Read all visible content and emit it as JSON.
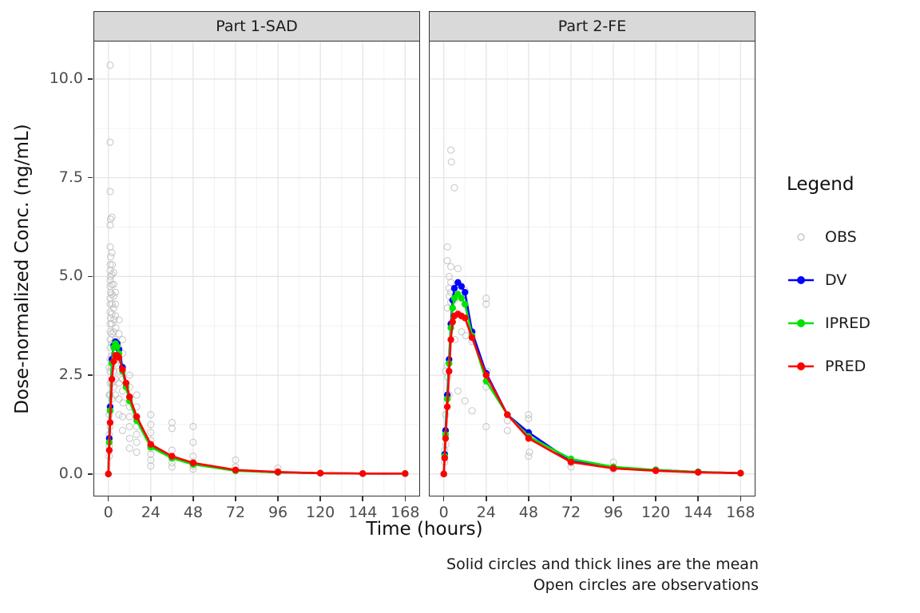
{
  "chart": {
    "caption_line1": "Solid circles and thick lines are the mean",
    "caption_line2": "Open circles are observations",
    "legend": {
      "title": "Legend",
      "entries": [
        {
          "label": "OBS",
          "type": "point-open",
          "color": "#bdbdbd"
        },
        {
          "label": "DV",
          "type": "line-point",
          "color": "#0000ff"
        },
        {
          "label": "IPRED",
          "type": "line-point",
          "color": "#00e300"
        },
        {
          "label": "PRED",
          "type": "line-point",
          "color": "#ff0000"
        }
      ]
    }
  },
  "chart_data": {
    "type": "line+scatter, faceted",
    "xlabel": "Time (hours)",
    "ylabel": "Dose-normalized Conc. (ng/mL)",
    "xlim": [
      -8,
      176
    ],
    "ylim": [
      -0.55,
      10.95
    ],
    "x_ticks": [
      0,
      24,
      48,
      72,
      96,
      120,
      144,
      168
    ],
    "x_tick_labels": [
      "0",
      "24",
      "48",
      "72",
      "96",
      "120",
      "144",
      "168"
    ],
    "x_minor": [
      12,
      36,
      60,
      84,
      108,
      132,
      156
    ],
    "y_ticks": [
      0,
      2.5,
      5,
      7.5,
      10
    ],
    "y_tick_labels": [
      "0.0",
      "2.5",
      "5.0",
      "7.5",
      "10.0"
    ],
    "y_minor": [
      1.25,
      3.75,
      6.25,
      8.75
    ],
    "grid": "on",
    "legend_position": "right",
    "series_x": [
      0,
      0.5,
      1,
      2,
      3,
      4,
      5,
      6,
      8,
      10,
      12,
      16,
      24,
      36,
      48,
      72,
      96,
      120,
      144,
      168
    ],
    "series_colors": {
      "DV": "#0000ff",
      "IPRED": "#00e300",
      "PRED": "#ff0000"
    },
    "obs_color": "#bdbdbd",
    "facets": [
      {
        "label": "Part 1-SAD",
        "series": [
          {
            "name": "DV",
            "y": [
              0,
              0.9,
              1.7,
              2.9,
              3.25,
              3.35,
              3.3,
              3.15,
              2.7,
              2.3,
              1.95,
              1.45,
              0.72,
              0.42,
              0.26,
              0.09,
              0.04,
              0.02,
              0.01,
              0.01
            ]
          },
          {
            "name": "IPRED",
            "y": [
              0,
              0.8,
              1.6,
              2.8,
              3.2,
              3.3,
              3.22,
              3.05,
              2.6,
              2.2,
              1.85,
              1.35,
              0.68,
              0.4,
              0.24,
              0.08,
              0.04,
              0.02,
              0.01,
              0.01
            ]
          },
          {
            "name": "PRED",
            "y": [
              0,
              0.6,
              1.3,
              2.4,
              2.85,
              3.0,
              3.0,
              2.95,
              2.65,
              2.3,
              1.95,
              1.45,
              0.75,
              0.45,
              0.28,
              0.1,
              0.05,
              0.02,
              0.01,
              0.01
            ]
          }
        ],
        "obs": [
          [
            0.5,
            0.45
          ],
          [
            0.5,
            0.7
          ],
          [
            0.5,
            1.0
          ],
          [
            0.5,
            1.5
          ],
          [
            0.5,
            2.0
          ],
          [
            0.5,
            2.7
          ],
          [
            1,
            10.35
          ],
          [
            1,
            8.4
          ],
          [
            1,
            7.15
          ],
          [
            1.2,
            6.45
          ],
          [
            1,
            6.3
          ],
          [
            1,
            5.75
          ],
          [
            1.3,
            5.5
          ],
          [
            1,
            5.3
          ],
          [
            1,
            5.15
          ],
          [
            1.2,
            5.0
          ],
          [
            1,
            4.9
          ],
          [
            1,
            4.75
          ],
          [
            1.3,
            4.6
          ],
          [
            1,
            4.45
          ],
          [
            1,
            4.3
          ],
          [
            1,
            4.1
          ],
          [
            1.2,
            3.95
          ],
          [
            1,
            3.8
          ],
          [
            1,
            3.6
          ],
          [
            1,
            3.4
          ],
          [
            1,
            3.2
          ],
          [
            1,
            2.9
          ],
          [
            1,
            2.6
          ],
          [
            1,
            2.3
          ],
          [
            1,
            2.0
          ],
          [
            1,
            1.6
          ],
          [
            1,
            1.2
          ],
          [
            2,
            6.5
          ],
          [
            2,
            5.6
          ],
          [
            2.2,
            5.3
          ],
          [
            2,
            5.05
          ],
          [
            2,
            4.8
          ],
          [
            2,
            4.55
          ],
          [
            2.2,
            4.3
          ],
          [
            2,
            4.05
          ],
          [
            2,
            3.8
          ],
          [
            2,
            3.55
          ],
          [
            2,
            3.3
          ],
          [
            2,
            3.0
          ],
          [
            2,
            2.7
          ],
          [
            2,
            2.3
          ],
          [
            2,
            1.9
          ],
          [
            3,
            5.1
          ],
          [
            3,
            4.8
          ],
          [
            3,
            4.5
          ],
          [
            3,
            4.2
          ],
          [
            3.2,
            3.9
          ],
          [
            3,
            3.6
          ],
          [
            3,
            3.3
          ],
          [
            3,
            3.0
          ],
          [
            3,
            2.6
          ],
          [
            3,
            2.2
          ],
          [
            4,
            4.6
          ],
          [
            4,
            4.3
          ],
          [
            4,
            4.0
          ],
          [
            4.2,
            3.7
          ],
          [
            4,
            3.4
          ],
          [
            4,
            3.1
          ],
          [
            4,
            2.8
          ],
          [
            4,
            2.4
          ],
          [
            4,
            2.0
          ],
          [
            6,
            3.9
          ],
          [
            6,
            3.55
          ],
          [
            6,
            3.2
          ],
          [
            6,
            2.9
          ],
          [
            6.3,
            2.6
          ],
          [
            6,
            2.3
          ],
          [
            6,
            1.9
          ],
          [
            6,
            1.5
          ],
          [
            8,
            3.4
          ],
          [
            8,
            3.05
          ],
          [
            8,
            2.7
          ],
          [
            8,
            2.4
          ],
          [
            8,
            2.1
          ],
          [
            8.3,
            1.8
          ],
          [
            8,
            1.45
          ],
          [
            8,
            1.1
          ],
          [
            12,
            2.5
          ],
          [
            12,
            2.2
          ],
          [
            12,
            1.95
          ],
          [
            12,
            1.7
          ],
          [
            12,
            1.45
          ],
          [
            12,
            1.2
          ],
          [
            12,
            0.9
          ],
          [
            12,
            0.65
          ],
          [
            16,
            2.0
          ],
          [
            16,
            1.7
          ],
          [
            16,
            1.45
          ],
          [
            16,
            1.2
          ],
          [
            16,
            1.0
          ],
          [
            16,
            0.8
          ],
          [
            16,
            0.55
          ],
          [
            24,
            1.5
          ],
          [
            24,
            1.25
          ],
          [
            24,
            1.05
          ],
          [
            24,
            0.85
          ],
          [
            24,
            0.65
          ],
          [
            24,
            0.5
          ],
          [
            24,
            0.35
          ],
          [
            24,
            0.2
          ],
          [
            36,
            1.3
          ],
          [
            36,
            1.15
          ],
          [
            36,
            0.6
          ],
          [
            36,
            0.4
          ],
          [
            36,
            0.28
          ],
          [
            36,
            0.18
          ],
          [
            48,
            1.2
          ],
          [
            48,
            0.8
          ],
          [
            48,
            0.45
          ],
          [
            48,
            0.3
          ],
          [
            48,
            0.2
          ],
          [
            48,
            0.12
          ],
          [
            72,
            0.35
          ],
          [
            72,
            0.18
          ],
          [
            72,
            0.08
          ],
          [
            96,
            0.15
          ],
          [
            96,
            0.06
          ]
        ]
      },
      {
        "label": "Part 2-FE",
        "series": [
          {
            "name": "DV",
            "y": [
              0,
              0.5,
              1.1,
              2.0,
              2.9,
              3.8,
              4.4,
              4.7,
              4.85,
              4.75,
              4.6,
              3.6,
              2.55,
              1.5,
              1.05,
              0.32,
              0.15,
              0.1,
              0.05,
              0.02
            ]
          },
          {
            "name": "IPRED",
            "y": [
              0,
              0.45,
              1.0,
              1.9,
              2.8,
              3.7,
              4.2,
              4.45,
              4.55,
              4.45,
              4.3,
              3.5,
              2.35,
              1.5,
              0.95,
              0.38,
              0.18,
              0.1,
              0.05,
              0.02
            ]
          },
          {
            "name": "PRED",
            "y": [
              0,
              0.4,
              0.9,
              1.7,
              2.6,
              3.4,
              3.85,
              4.0,
              4.05,
              4.0,
              3.95,
              3.45,
              2.5,
              1.5,
              0.9,
              0.3,
              0.14,
              0.08,
              0.04,
              0.02
            ]
          }
        ],
        "obs": [
          [
            0.5,
            0.3
          ],
          [
            0.5,
            0.6
          ],
          [
            1,
            2.6
          ],
          [
            1,
            1.5
          ],
          [
            1.2,
            0.75
          ],
          [
            2,
            5.75
          ],
          [
            2,
            5.4
          ],
          [
            2,
            4.2
          ],
          [
            2,
            2.75
          ],
          [
            2.3,
            2.45
          ],
          [
            3,
            5.0
          ],
          [
            3,
            4.7
          ],
          [
            3.2,
            4.5
          ],
          [
            3,
            2.0
          ],
          [
            4,
            8.2
          ],
          [
            4.3,
            7.9
          ],
          [
            4,
            5.25
          ],
          [
            4,
            4.85
          ],
          [
            4,
            4.6
          ],
          [
            4,
            4.35
          ],
          [
            6,
            7.25
          ],
          [
            6,
            4.4
          ],
          [
            6,
            4.1
          ],
          [
            6.3,
            3.4
          ],
          [
            8,
            5.2
          ],
          [
            8,
            4.8
          ],
          [
            8,
            4.5
          ],
          [
            8,
            2.1
          ],
          [
            10,
            4.6
          ],
          [
            10,
            3.6
          ],
          [
            12,
            4.65
          ],
          [
            12,
            4.3
          ],
          [
            12.4,
            3.5
          ],
          [
            12,
            1.85
          ],
          [
            16,
            3.6
          ],
          [
            16,
            3.35
          ],
          [
            16,
            1.6
          ],
          [
            24,
            4.45
          ],
          [
            24,
            4.3
          ],
          [
            24.5,
            2.6
          ],
          [
            24,
            2.2
          ],
          [
            24,
            1.2
          ],
          [
            36,
            1.35
          ],
          [
            36,
            1.1
          ],
          [
            48,
            1.5
          ],
          [
            48,
            1.4
          ],
          [
            48.5,
            0.55
          ],
          [
            48,
            0.45
          ],
          [
            72,
            0.28
          ],
          [
            72,
            0.18
          ],
          [
            96,
            0.3
          ],
          [
            96,
            0.12
          ],
          [
            120,
            0.1
          ],
          [
            144,
            0.05
          ]
        ]
      }
    ]
  }
}
